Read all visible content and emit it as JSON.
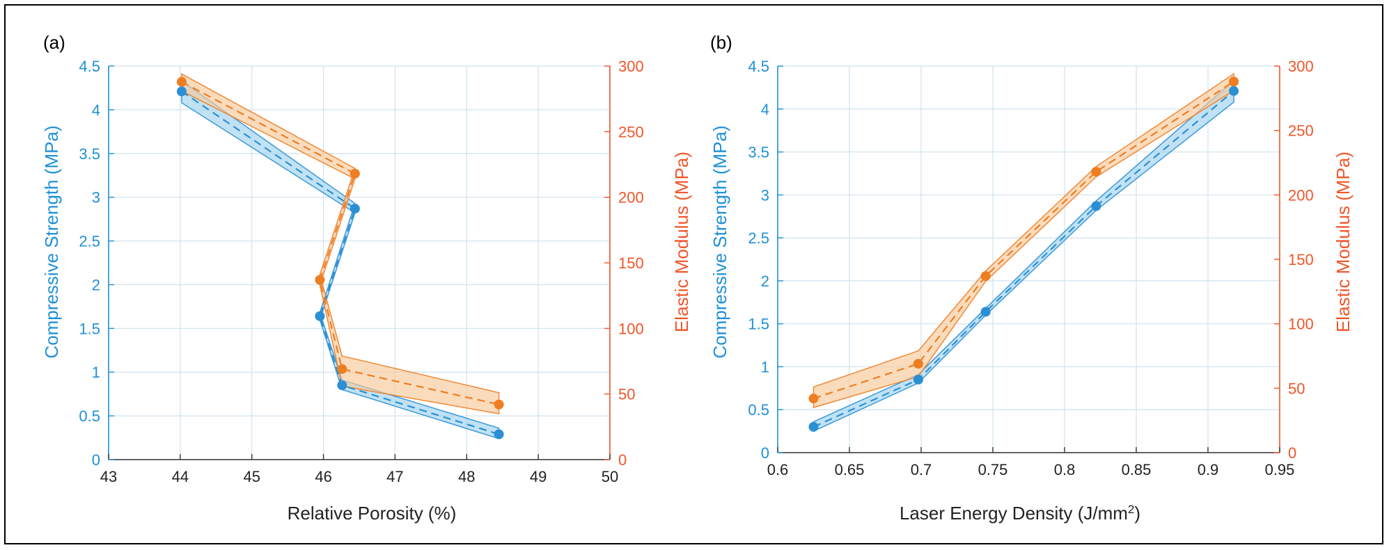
{
  "colors": {
    "blue": "#2b8fd4",
    "blue_band": "#9ed2ee",
    "orange": "#ef7d22",
    "orange_band": "#f8c99a",
    "grid": "#cfe3ee"
  },
  "chart_data": [
    {
      "panel_label": "(a)",
      "type": "line",
      "xlabel": "Relative Porosity (%)",
      "ylabel_left": "Compressive Strength (MPa)",
      "ylabel_right": "Elastic Modulus (MPa)",
      "xlim": [
        43,
        50
      ],
      "ylim_left": [
        0,
        4.5
      ],
      "ylim_right": [
        0,
        300
      ],
      "x_ticks": [
        43,
        44,
        45,
        46,
        47,
        48,
        49,
        50
      ],
      "y_left_ticks": [
        0,
        0.5,
        1,
        1.5,
        2,
        2.5,
        3,
        3.5,
        4,
        4.5
      ],
      "y_right_ticks": [
        0,
        50,
        100,
        150,
        200,
        250,
        300
      ],
      "grid": true,
      "series": [
        {
          "name": "Compressive Strength",
          "axis": "left",
          "color": "#2b8fd4",
          "x": [
            44.02,
            46.44,
            45.95,
            46.26,
            48.45
          ],
          "y": [
            4.21,
            2.87,
            1.64,
            0.85,
            0.29
          ],
          "band_lower": [
            4.08,
            2.82,
            1.6,
            0.8,
            0.24
          ],
          "band_upper": [
            4.33,
            2.93,
            1.68,
            0.91,
            0.36
          ]
        },
        {
          "name": "Elastic Modulus",
          "axis": "right",
          "color": "#ef7d22",
          "x": [
            44.02,
            46.44,
            45.95,
            46.26,
            48.45
          ],
          "y": [
            288,
            218,
            137,
            69,
            42
          ],
          "band_lower": [
            281,
            214,
            133,
            56,
            35
          ],
          "band_upper": [
            294,
            222,
            141,
            79,
            51
          ]
        }
      ]
    },
    {
      "panel_label": "(b)",
      "type": "line",
      "xlabel": "Laser Energy Density (J/mm",
      "xlabel_superscript": "2",
      "xlabel_suffix": ")",
      "ylabel_left": "Compressive Strength (MPa)",
      "ylabel_right": "Elastic Modulus (MPa)",
      "xlim": [
        0.6,
        0.95
      ],
      "ylim_left": [
        0,
        4.5
      ],
      "ylim_right": [
        0,
        300
      ],
      "x_ticks": [
        0.6,
        0.65,
        0.7,
        0.75,
        0.8,
        0.85,
        0.9,
        0.95
      ],
      "y_left_ticks": [
        0,
        0.5,
        1,
        1.5,
        2,
        2.5,
        3,
        3.5,
        4,
        4.5
      ],
      "y_right_ticks": [
        0,
        50,
        100,
        150,
        200,
        250,
        300
      ],
      "grid": true,
      "series": [
        {
          "name": "Compressive Strength",
          "axis": "left",
          "color": "#2b8fd4",
          "x": [
            0.625,
            0.698,
            0.745,
            0.822,
            0.918
          ],
          "y": [
            0.3,
            0.85,
            1.64,
            2.87,
            4.21
          ],
          "band_lower": [
            0.25,
            0.81,
            1.6,
            2.82,
            4.08
          ],
          "band_upper": [
            0.36,
            0.91,
            1.68,
            2.93,
            4.33
          ]
        },
        {
          "name": "Elastic Modulus",
          "axis": "right",
          "color": "#ef7d22",
          "x": [
            0.625,
            0.698,
            0.745,
            0.822,
            0.918
          ],
          "y": [
            42,
            69,
            137,
            218,
            288
          ],
          "band_lower": [
            35,
            59,
            133,
            214,
            281
          ],
          "band_upper": [
            51,
            79,
            141,
            222,
            294
          ]
        }
      ]
    }
  ]
}
